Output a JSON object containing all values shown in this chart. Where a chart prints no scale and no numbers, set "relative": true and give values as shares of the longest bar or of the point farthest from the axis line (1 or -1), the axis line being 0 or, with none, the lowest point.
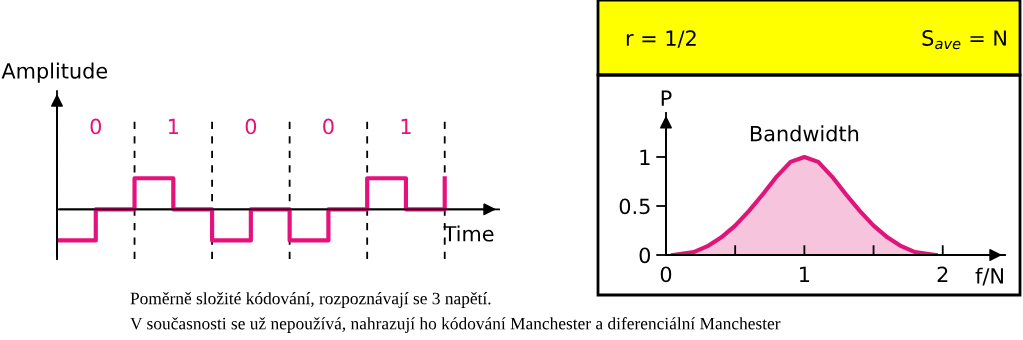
{
  "chart_data": [
    {
      "type": "step",
      "relative": true,
      "xlabel": "Time",
      "ylabel": "Amplitude",
      "tick_labels": "x",
      "categories": [
        null,
        "0",
        null,
        "1",
        null,
        "0",
        null,
        "0",
        null,
        "1",
        null
      ],
      "series": [
        {
          "color": "#e5127d",
          "values": [
            -1,
            0,
            1,
            0,
            -1,
            0,
            -1,
            0,
            1,
            0,
            1
          ]
        }
      ],
      "grid": "x",
      "annotations": [
        "Poměrně složité kódování, rozpoznávají se 3 napětí.",
        "V současnosti se už nepoužívá, nahrazují ho kódování Manchester a diferenciální Manchester"
      ]
    },
    {
      "type": "area",
      "xlabel": "f/N",
      "ylabel": "P",
      "xlim": [
        0,
        2.45
      ],
      "ylim": [
        0,
        1.45
      ],
      "xticks": [
        0,
        {
          "value": 0.5,
          "label": null
        },
        1,
        {
          "value": 1.5,
          "label": null
        },
        2
      ],
      "yticks": [
        0,
        0.5,
        1
      ],
      "x": [
        0.05,
        0.1,
        0.2,
        0.3,
        0.4,
        0.5,
        0.6,
        0.7,
        0.8,
        0.9,
        1.0,
        1.1,
        1.2,
        1.3,
        1.4,
        1.5,
        1.6,
        1.7,
        1.8,
        1.9,
        1.95
      ],
      "series": [
        {
          "color": "#e0157a",
          "values": [
            0,
            0.01,
            0.03,
            0.09,
            0.18,
            0.3,
            0.45,
            0.62,
            0.8,
            0.95,
            1.0,
            0.95,
            0.8,
            0.62,
            0.45,
            0.3,
            0.18,
            0.09,
            0.03,
            0.01,
            0
          ]
        }
      ],
      "annotations": [
        "Bandwidth",
        "r = 1/2",
        "S$_{ave}$ = N"
      ]
    }
  ]
}
